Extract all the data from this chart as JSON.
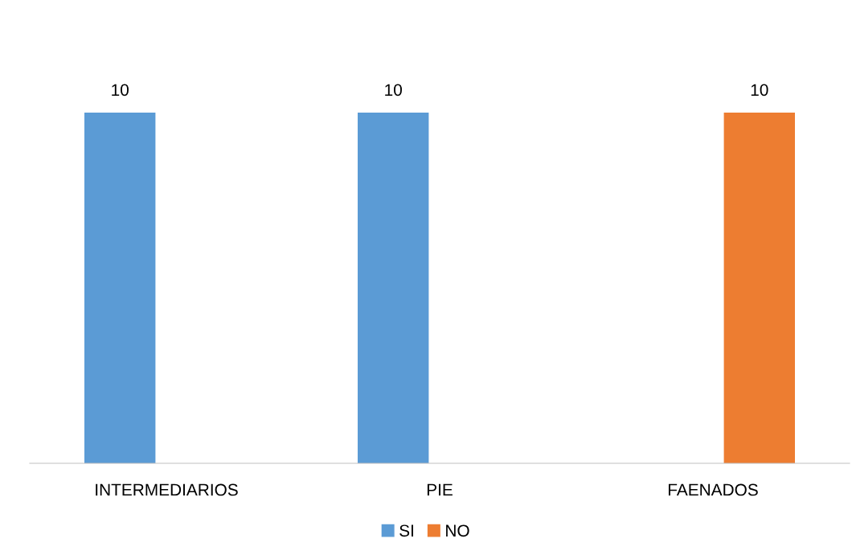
{
  "chart_data": {
    "type": "bar",
    "categories": [
      "INTERMEDIARIOS",
      "PIE",
      "FAENADOS"
    ],
    "series": [
      {
        "name": "SI",
        "color": "#5b9bd5",
        "values": [
          10,
          10,
          null
        ]
      },
      {
        "name": "NO",
        "color": "#ed7d31",
        "values": [
          null,
          null,
          10
        ]
      }
    ],
    "data_labels": true,
    "legend": "bottom",
    "grid": false
  }
}
